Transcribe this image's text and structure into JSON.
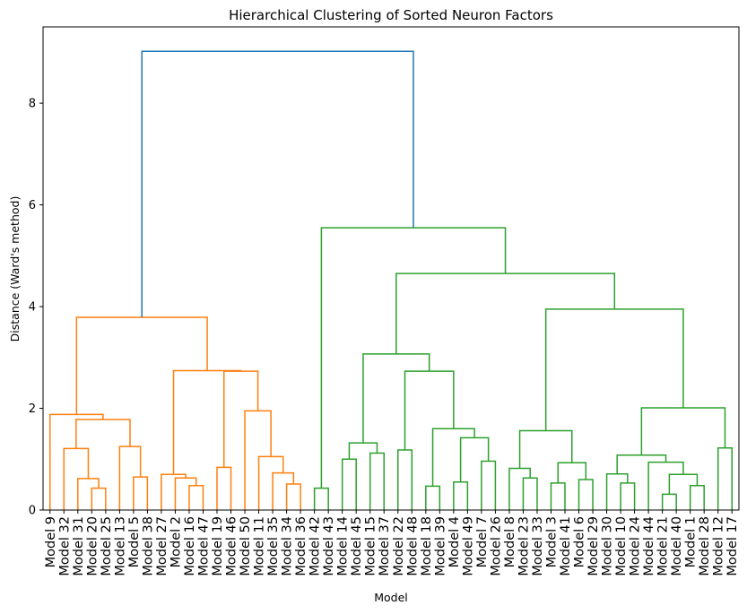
{
  "chart_data": {
    "type": "dendrogram",
    "title": "Hierarchical Clustering of Sorted Neuron Factors",
    "xlabel": "Model",
    "ylabel": "Distance (Ward's method)",
    "ylim": [
      0,
      9.5
    ],
    "yticks": [
      "0",
      "2",
      "4",
      "6",
      "8"
    ],
    "grid": false,
    "leaves": [
      "Model 9",
      "Model 32",
      "Model 31",
      "Model 20",
      "Model 25",
      "Model 13",
      "Model 5",
      "Model 38",
      "Model 27",
      "Model 2",
      "Model 16",
      "Model 47",
      "Model 19",
      "Model 46",
      "Model 50",
      "Model 11",
      "Model 35",
      "Model 34",
      "Model 36",
      "Model 42",
      "Model 43",
      "Model 14",
      "Model 45",
      "Model 15",
      "Model 37",
      "Model 22",
      "Model 48",
      "Model 18",
      "Model 39",
      "Model 4",
      "Model 49",
      "Model 7",
      "Model 26",
      "Model 8",
      "Model 23",
      "Model 33",
      "Model 3",
      "Model 41",
      "Model 6",
      "Model 29",
      "Model 30",
      "Model 10",
      "Model 24",
      "Model 44",
      "Model 21",
      "Model 40",
      "Model 1",
      "Model 28",
      "Model 12",
      "Model 17"
    ],
    "colors": {
      "above_threshold": "#1f77b4",
      "cluster_1": "#ff7f0e",
      "cluster_2": "#2ca02c"
    },
    "merges": [
      {
        "a": 3,
        "b": 4,
        "h": 0.43,
        "c": "cluster_1"
      },
      {
        "a": 2,
        "b": 50,
        "h": 0.62,
        "c": "cluster_1"
      },
      {
        "a": 1,
        "b": 51,
        "h": 1.21,
        "c": "cluster_1"
      },
      {
        "a": 6,
        "b": 7,
        "h": 0.65,
        "c": "cluster_1"
      },
      {
        "a": 5,
        "b": 53,
        "h": 1.25,
        "c": "cluster_1"
      },
      {
        "a": 52,
        "b": 54,
        "h": 1.78,
        "c": "cluster_1"
      },
      {
        "a": 0,
        "b": 55,
        "h": 1.88,
        "c": "cluster_1"
      },
      {
        "a": 10,
        "b": 11,
        "h": 0.48,
        "c": "cluster_1"
      },
      {
        "a": 9,
        "b": 57,
        "h": 0.63,
        "c": "cluster_1"
      },
      {
        "a": 8,
        "b": 58,
        "h": 0.7,
        "c": "cluster_1"
      },
      {
        "a": 12,
        "b": 13,
        "h": 0.84,
        "c": "cluster_1"
      },
      {
        "a": 17,
        "b": 18,
        "h": 0.51,
        "c": "cluster_1"
      },
      {
        "a": 16,
        "b": 61,
        "h": 0.73,
        "c": "cluster_1"
      },
      {
        "a": 15,
        "b": 62,
        "h": 1.05,
        "c": "cluster_1"
      },
      {
        "a": 14,
        "b": 63,
        "h": 1.95,
        "c": "cluster_1"
      },
      {
        "a": 60,
        "b": 64,
        "h": 2.73,
        "c": "cluster_1"
      },
      {
        "a": 59,
        "b": 65,
        "h": 2.74,
        "c": "cluster_1"
      },
      {
        "a": 56,
        "b": 66,
        "h": 3.79,
        "c": "cluster_1"
      },
      {
        "a": 19,
        "b": 20,
        "h": 0.43,
        "c": "cluster_2"
      },
      {
        "a": 21,
        "b": 22,
        "h": 1.0,
        "c": "cluster_2"
      },
      {
        "a": 23,
        "b": 24,
        "h": 1.12,
        "c": "cluster_2"
      },
      {
        "a": 69,
        "b": 70,
        "h": 1.32,
        "c": "cluster_2"
      },
      {
        "a": 25,
        "b": 26,
        "h": 1.18,
        "c": "cluster_2"
      },
      {
        "a": 27,
        "b": 28,
        "h": 0.47,
        "c": "cluster_2"
      },
      {
        "a": 29,
        "b": 30,
        "h": 0.55,
        "c": "cluster_2"
      },
      {
        "a": 31,
        "b": 32,
        "h": 0.96,
        "c": "cluster_2"
      },
      {
        "a": 74,
        "b": 75,
        "h": 1.42,
        "c": "cluster_2"
      },
      {
        "a": 73,
        "b": 76,
        "h": 1.6,
        "c": "cluster_2"
      },
      {
        "a": 72,
        "b": 77,
        "h": 2.73,
        "c": "cluster_2"
      },
      {
        "a": 71,
        "b": 78,
        "h": 3.07,
        "c": "cluster_2"
      },
      {
        "a": 34,
        "b": 35,
        "h": 0.63,
        "c": "cluster_2"
      },
      {
        "a": 33,
        "b": 80,
        "h": 0.82,
        "c": "cluster_2"
      },
      {
        "a": 36,
        "b": 37,
        "h": 0.53,
        "c": "cluster_2"
      },
      {
        "a": 38,
        "b": 39,
        "h": 0.6,
        "c": "cluster_2"
      },
      {
        "a": 82,
        "b": 83,
        "h": 0.93,
        "c": "cluster_2"
      },
      {
        "a": 81,
        "b": 84,
        "h": 1.56,
        "c": "cluster_2"
      },
      {
        "a": 41,
        "b": 42,
        "h": 0.53,
        "c": "cluster_2"
      },
      {
        "a": 40,
        "b": 86,
        "h": 0.71,
        "c": "cluster_2"
      },
      {
        "a": 44,
        "b": 45,
        "h": 0.31,
        "c": "cluster_2"
      },
      {
        "a": 46,
        "b": 47,
        "h": 0.48,
        "c": "cluster_2"
      },
      {
        "a": 88,
        "b": 89,
        "h": 0.7,
        "c": "cluster_2"
      },
      {
        "a": 43,
        "b": 90,
        "h": 0.94,
        "c": "cluster_2"
      },
      {
        "a": 87,
        "b": 91,
        "h": 1.08,
        "c": "cluster_2"
      },
      {
        "a": 48,
        "b": 49,
        "h": 1.22,
        "c": "cluster_2"
      },
      {
        "a": 92,
        "b": 93,
        "h": 2.01,
        "c": "cluster_2"
      },
      {
        "a": 85,
        "b": 94,
        "h": 3.95,
        "c": "cluster_2"
      },
      {
        "a": 79,
        "b": 95,
        "h": 4.65,
        "c": "cluster_2"
      },
      {
        "a": 68,
        "b": 96,
        "h": 5.55,
        "c": "cluster_2"
      },
      {
        "a": 67,
        "b": 97,
        "h": 9.02,
        "c": "above_threshold"
      }
    ]
  }
}
